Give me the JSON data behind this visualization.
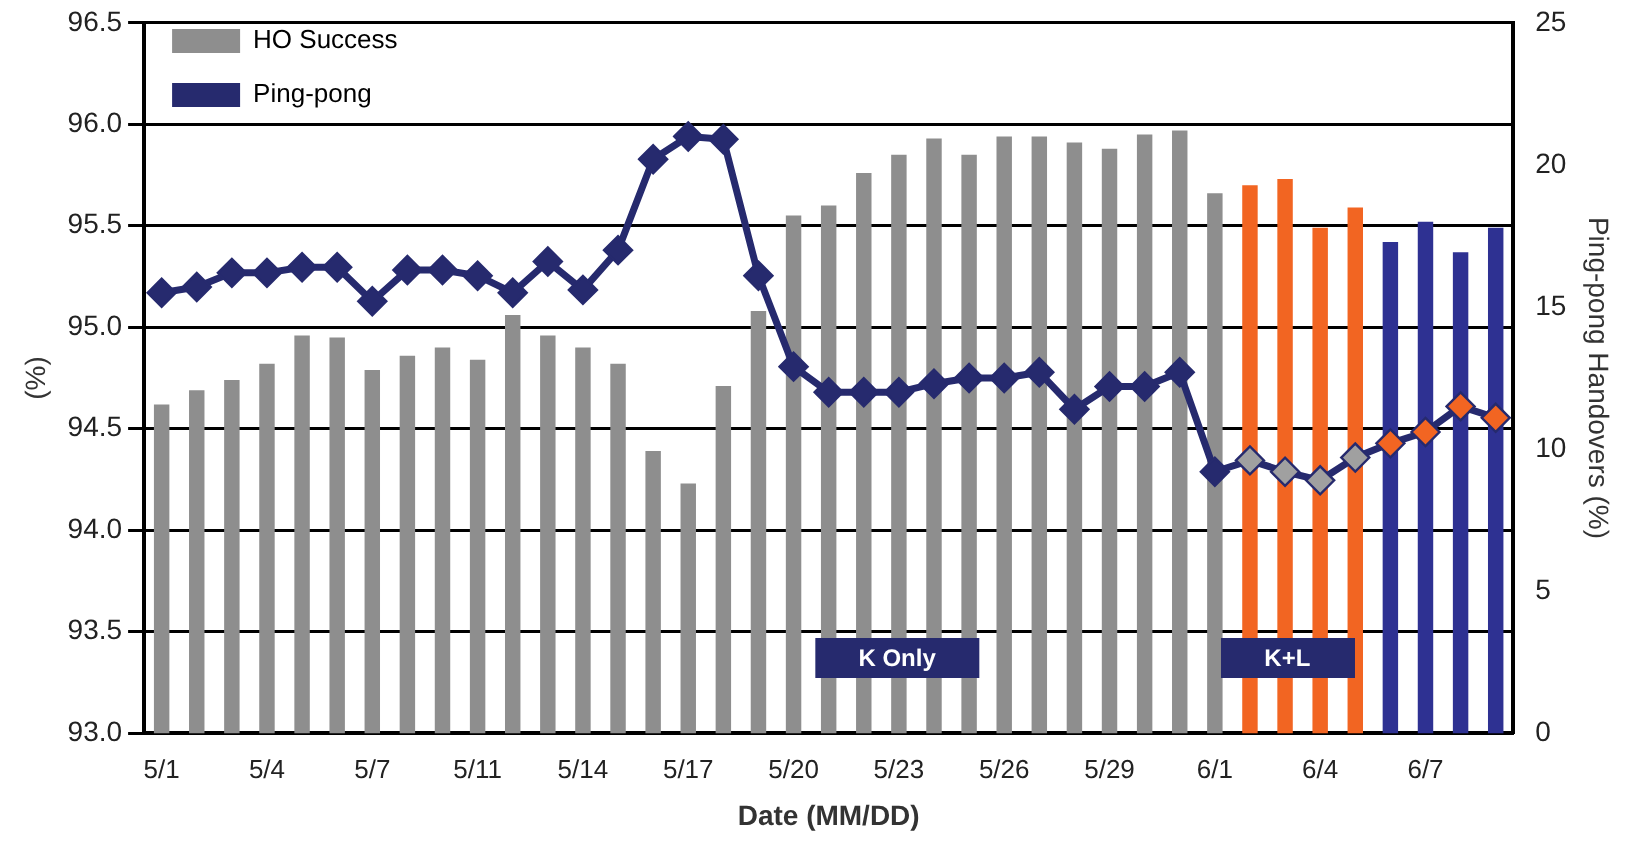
{
  "chart_data": {
    "type": "bar",
    "xlabel": "Date (MM/DD)",
    "ylabel": "(%)",
    "y2label": "Ping-pong Handovers (%)",
    "categories": [
      "5/1",
      null,
      null,
      "5/4",
      null,
      null,
      "5/7",
      null,
      null,
      "5/11",
      null,
      null,
      "5/14",
      null,
      null,
      "5/17",
      null,
      null,
      "5/20",
      null,
      null,
      "5/23",
      null,
      null,
      "5/26",
      null,
      null,
      "5/29",
      null,
      null,
      "6/1",
      null,
      null,
      "6/4",
      null,
      null,
      "6/7",
      null,
      null
    ],
    "series": [
      {
        "name": "HO Success",
        "color": "#8e8e8e",
        "colors": [
          "#8e8e8e",
          "#8e8e8e",
          "#8e8e8e",
          "#8e8e8e",
          "#8e8e8e",
          "#8e8e8e",
          "#8e8e8e",
          "#8e8e8e",
          "#8e8e8e",
          "#8e8e8e",
          "#8e8e8e",
          "#8e8e8e",
          "#8e8e8e",
          "#8e8e8e",
          "#8e8e8e",
          "#8e8e8e",
          "#8e8e8e",
          "#8e8e8e",
          "#8e8e8e",
          "#8e8e8e",
          "#8e8e8e",
          "#8e8e8e",
          "#8e8e8e",
          "#8e8e8e",
          "#8e8e8e",
          "#8e8e8e",
          "#8e8e8e",
          "#8e8e8e",
          "#8e8e8e",
          "#8e8e8e",
          "#8e8e8e",
          "#f26522",
          "#f26522",
          "#f26522",
          "#f26522",
          "#2e3192",
          "#2e3192",
          "#2e3192",
          "#2e3192"
        ],
        "values": [
          94.62,
          94.69,
          94.74,
          94.82,
          94.96,
          94.95,
          94.79,
          94.86,
          94.9,
          94.84,
          95.06,
          94.96,
          94.9,
          94.82,
          94.39,
          94.23,
          94.71,
          95.08,
          95.55,
          95.6,
          95.76,
          95.85,
          95.93,
          95.85,
          95.94,
          95.94,
          95.91,
          95.88,
          95.95,
          95.97,
          95.66,
          95.7,
          95.73,
          95.49,
          95.59,
          95.42,
          95.52,
          95.37,
          95.49
        ]
      },
      {
        "name": "Ping-pong",
        "type": "line",
        "axis": "y2",
        "color": "#262a6e",
        "colors": [
          "#262a6e",
          "#262a6e",
          "#262a6e",
          "#262a6e",
          "#262a6e",
          "#262a6e",
          "#262a6e",
          "#262a6e",
          "#262a6e",
          "#262a6e",
          "#262a6e",
          "#262a6e",
          "#262a6e",
          "#262a6e",
          "#262a6e",
          "#262a6e",
          "#262a6e",
          "#262a6e",
          "#262a6e",
          "#262a6e",
          "#262a6e",
          "#262a6e",
          "#262a6e",
          "#262a6e",
          "#262a6e",
          "#262a6e",
          "#262a6e",
          "#262a6e",
          "#262a6e",
          "#262a6e",
          "#262a6e",
          "#a0a0a0",
          "#a0a0a0",
          "#a0a0a0",
          "#a0a0a0",
          "#f26522",
          "#f26522",
          "#f26522",
          "#f26522"
        ],
        "values": [
          15.5,
          15.7,
          16.2,
          16.2,
          16.4,
          16.4,
          15.2,
          16.3,
          16.3,
          16.1,
          15.5,
          16.6,
          15.6,
          17.0,
          20.2,
          21.0,
          20.9,
          16.1,
          12.9,
          12.0,
          12.0,
          12.0,
          12.3,
          12.5,
          12.5,
          12.7,
          11.4,
          12.2,
          12.2,
          12.7,
          9.2,
          9.6,
          9.2,
          8.9,
          9.7,
          10.2,
          10.6,
          11.5,
          11.1
        ]
      }
    ],
    "ylim": [
      93.0,
      96.5
    ],
    "yticks": [
      {
        "value": 93,
        "label": "93.0"
      },
      {
        "value": 93.5,
        "label": "93.5"
      },
      {
        "value": 94,
        "label": "94.0"
      },
      {
        "value": 94.5,
        "label": "94.5"
      },
      {
        "value": 95,
        "label": "95.0"
      },
      {
        "value": 95.5,
        "label": "95.5"
      },
      {
        "value": 96,
        "label": "96.0"
      },
      {
        "value": 96.5,
        "label": "96.5"
      }
    ],
    "y2lim": [
      0,
      25
    ],
    "y2ticks": [
      0,
      5,
      10,
      15,
      20,
      25
    ],
    "grid": "y",
    "legend": "top left",
    "marker": "diamond",
    "annotations": [
      "K Only",
      "K+L"
    ]
  }
}
